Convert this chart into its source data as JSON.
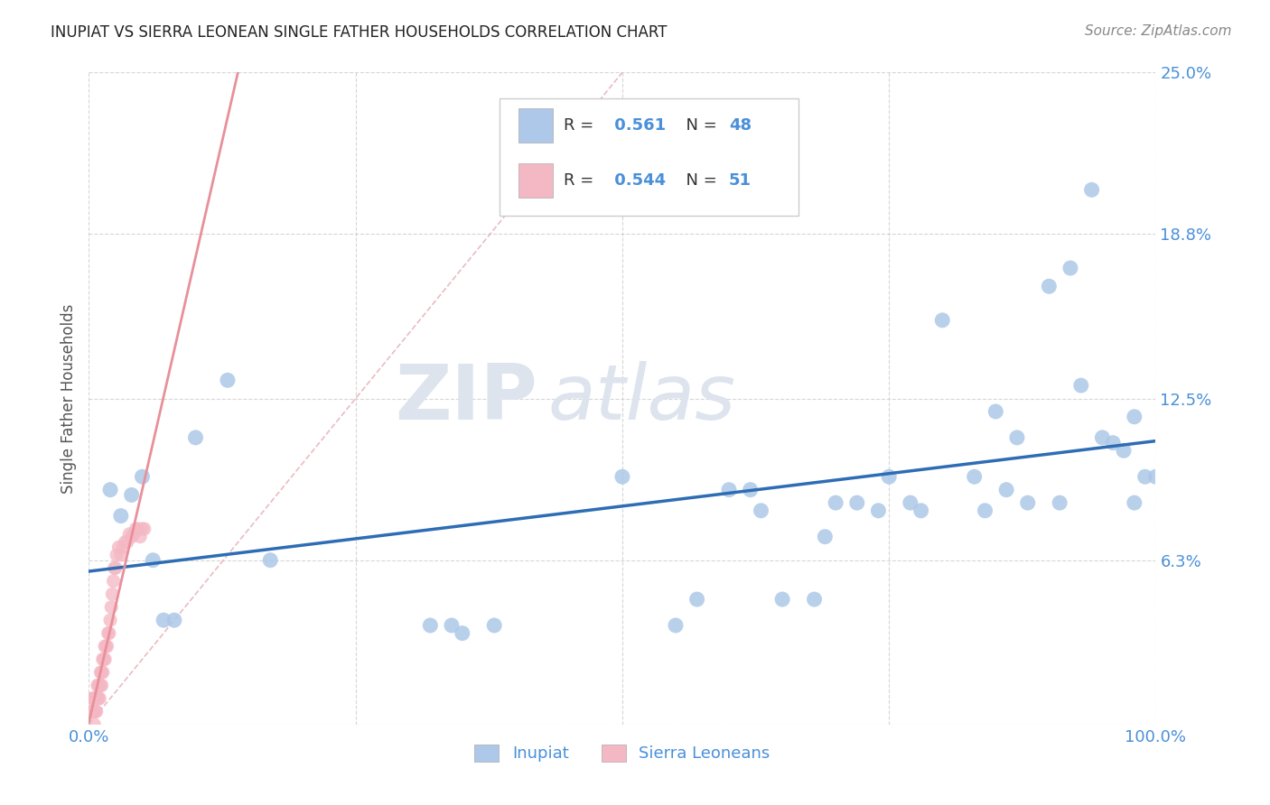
{
  "title": "INUPIAT VS SIERRA LEONEAN SINGLE FATHER HOUSEHOLDS CORRELATION CHART",
  "source": "Source: ZipAtlas.com",
  "ylabel": "Single Father Households",
  "xlim": [
    0.0,
    1.0
  ],
  "ylim": [
    0.0,
    0.25
  ],
  "xticks": [
    0.0,
    0.25,
    0.5,
    0.75,
    1.0
  ],
  "xticklabels": [
    "0.0%",
    "",
    "",
    "",
    "100.0%"
  ],
  "ytick_positions": [
    0.0,
    0.063,
    0.125,
    0.188,
    0.25
  ],
  "yticklabels": [
    "",
    "6.3%",
    "12.5%",
    "18.8%",
    "25.0%"
  ],
  "watermark_zip": "ZIP",
  "watermark_atlas": "atlas",
  "legend_r_inupiat": "0.561",
  "legend_n_inupiat": "48",
  "legend_r_sierra": "0.544",
  "legend_n_sierra": "51",
  "inupiat_color": "#adc8e8",
  "sierra_color": "#f4b8c4",
  "inupiat_line_color": "#2e6db4",
  "sierra_line_color": "#e8909a",
  "diagonal_color": "#e8b4bc",
  "background_color": "#ffffff",
  "grid_color": "#cccccc",
  "tick_color": "#4a90d9",
  "inupiat_x": [
    0.02,
    0.03,
    0.04,
    0.05,
    0.06,
    0.07,
    0.08,
    0.1,
    0.13,
    0.17,
    0.32,
    0.34,
    0.35,
    0.38,
    0.55,
    0.6,
    0.62,
    0.65,
    0.68,
    0.7,
    0.72,
    0.75,
    0.78,
    0.8,
    0.83,
    0.84,
    0.85,
    0.87,
    0.88,
    0.9,
    0.92,
    0.93,
    0.94,
    0.95,
    0.96,
    0.97,
    0.98,
    0.98,
    0.99,
    1.0,
    0.91,
    0.86,
    0.77,
    0.74,
    0.69,
    0.63,
    0.57,
    0.5
  ],
  "inupiat_y": [
    0.09,
    0.08,
    0.088,
    0.095,
    0.063,
    0.04,
    0.04,
    0.11,
    0.132,
    0.063,
    0.038,
    0.038,
    0.035,
    0.038,
    0.038,
    0.09,
    0.09,
    0.048,
    0.048,
    0.085,
    0.085,
    0.095,
    0.082,
    0.155,
    0.095,
    0.082,
    0.12,
    0.11,
    0.085,
    0.168,
    0.175,
    0.13,
    0.205,
    0.11,
    0.108,
    0.105,
    0.118,
    0.085,
    0.095,
    0.095,
    0.085,
    0.09,
    0.085,
    0.082,
    0.072,
    0.082,
    0.048,
    0.095
  ],
  "sierra_x": [
    0.002,
    0.003,
    0.003,
    0.004,
    0.004,
    0.005,
    0.005,
    0.005,
    0.006,
    0.006,
    0.007,
    0.007,
    0.008,
    0.008,
    0.009,
    0.009,
    0.01,
    0.01,
    0.011,
    0.011,
    0.012,
    0.012,
    0.013,
    0.013,
    0.014,
    0.015,
    0.015,
    0.016,
    0.017,
    0.018,
    0.019,
    0.02,
    0.021,
    0.022,
    0.023,
    0.024,
    0.025,
    0.026,
    0.028,
    0.03,
    0.032,
    0.034,
    0.036,
    0.038,
    0.04,
    0.042,
    0.044,
    0.046,
    0.048,
    0.05,
    0.052
  ],
  "sierra_y": [
    0.005,
    0.005,
    0.01,
    0.005,
    0.01,
    0.0,
    0.005,
    0.01,
    0.005,
    0.01,
    0.005,
    0.01,
    0.01,
    0.015,
    0.01,
    0.015,
    0.01,
    0.015,
    0.015,
    0.02,
    0.015,
    0.02,
    0.02,
    0.025,
    0.025,
    0.025,
    0.03,
    0.03,
    0.03,
    0.035,
    0.035,
    0.04,
    0.045,
    0.05,
    0.055,
    0.06,
    0.06,
    0.065,
    0.068,
    0.065,
    0.068,
    0.07,
    0.07,
    0.073,
    0.072,
    0.073,
    0.075,
    0.075,
    0.072,
    0.075,
    0.075
  ],
  "inupiat_label": "Inupiat",
  "sierra_label": "Sierra Leoneans"
}
